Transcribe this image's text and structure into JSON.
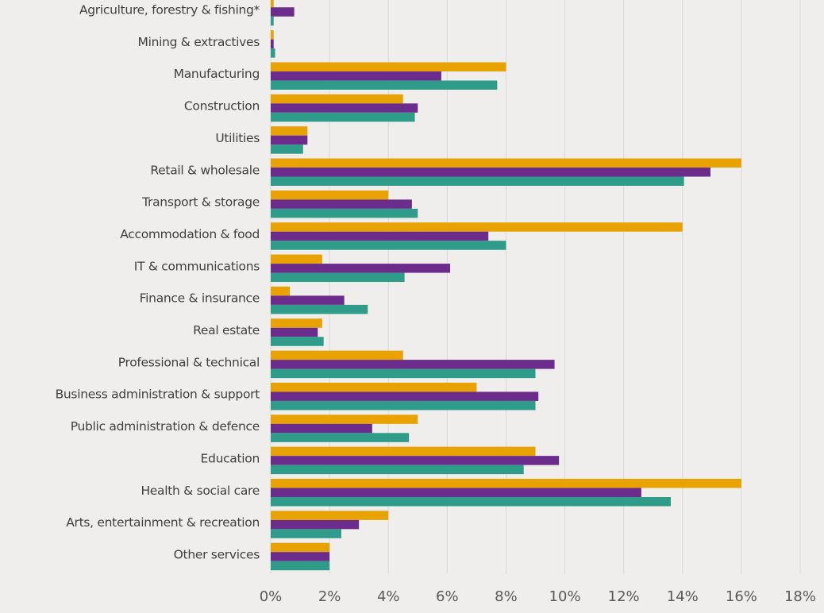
{
  "chart_data": {
    "type": "hbar",
    "categories": [
      "Agriculture, forestry & fishing*",
      "Mining & extractives",
      "Manufacturing",
      "Construction",
      "Utilities",
      "Retail & wholesale",
      "Transport & storage",
      "Accommodation & food",
      "IT & communications",
      "Finance & insurance",
      "Real estate",
      "Professional & technical",
      "Business administration & support",
      "Public administration & defence",
      "Education",
      "Health & social care",
      "Arts, entertainment & recreation",
      "Other services"
    ],
    "series": [
      {
        "color": "#e8a202",
        "values": [
          0.1,
          0.1,
          8.0,
          4.5,
          1.25,
          16.0,
          4.0,
          14.0,
          1.75,
          0.65,
          1.75,
          4.5,
          7.0,
          5.0,
          9.0,
          16.0,
          4.0,
          2.0
        ]
      },
      {
        "color": "#6b2c8c",
        "values": [
          0.8,
          0.1,
          5.8,
          5.0,
          1.25,
          14.95,
          4.8,
          7.4,
          6.1,
          2.5,
          1.6,
          9.65,
          9.1,
          3.45,
          9.8,
          12.6,
          3.0,
          2.0
        ]
      },
      {
        "color": "#2f9c89",
        "values": [
          0.1,
          0.15,
          7.7,
          4.9,
          1.1,
          14.05,
          5.0,
          8.0,
          4.55,
          3.3,
          1.8,
          9.0,
          9.0,
          4.7,
          8.6,
          13.6,
          2.4,
          2.0
        ]
      }
    ],
    "xlim": [
      0,
      18
    ],
    "xticks": [
      {
        "value": 0,
        "label": "0%"
      },
      {
        "value": 2,
        "label": "2%"
      },
      {
        "value": 4,
        "label": "4%"
      },
      {
        "value": 6,
        "label": "6%"
      },
      {
        "value": 8,
        "label": "8%"
      },
      {
        "value": 10,
        "label": "10%"
      },
      {
        "value": 12,
        "label": "12%"
      },
      {
        "value": 14,
        "label": "14%"
      },
      {
        "value": 16,
        "label": "16%"
      },
      {
        "value": 18,
        "label": "18%"
      }
    ],
    "grid": true
  }
}
